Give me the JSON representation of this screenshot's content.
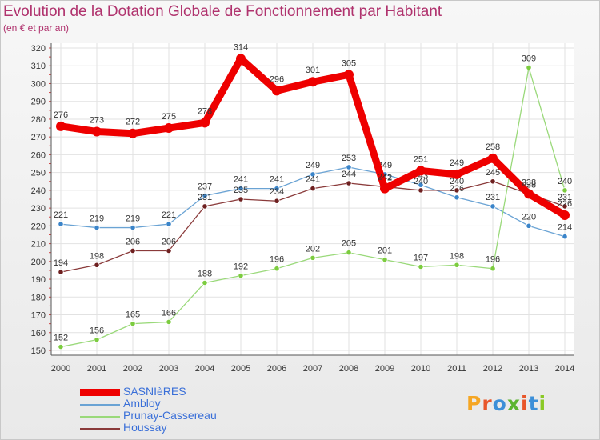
{
  "header": {
    "title": "Evolution de la Dotation Globale de Fonctionnement par Habitant",
    "subtitle": "(en € et par an)"
  },
  "logo": {
    "text": "Proxiti",
    "colors": [
      "#f5a623",
      "#e8562a",
      "#3c8fd8",
      "#5bb431",
      "#e8562a",
      "#3c8fd8",
      "#8ac926"
    ]
  },
  "chart_data": {
    "type": "line",
    "x": [
      "2000",
      "2001",
      "2002",
      "2003",
      "2004",
      "2005",
      "2006",
      "2007",
      "2008",
      "2009",
      "2010",
      "2011",
      "2012",
      "2013",
      "2014"
    ],
    "ylim": [
      150,
      320
    ],
    "yticks": [
      150,
      160,
      170,
      180,
      190,
      200,
      210,
      220,
      230,
      240,
      250,
      260,
      270,
      280,
      290,
      300,
      310,
      320
    ],
    "grid": true,
    "legend_position": "bottom-left",
    "series": [
      {
        "name": "Ambloy",
        "color": "#6aa3d4",
        "marker": "#3a84c9",
        "values": [
          221,
          219,
          219,
          221,
          237,
          241,
          241,
          249,
          253,
          249,
          243,
          236,
          231,
          220,
          214
        ],
        "labels": [
          "221",
          "219",
          "219",
          "221",
          "237",
          "241",
          "241",
          "249",
          "253",
          "249",
          "243",
          "236",
          "231",
          "220",
          "214"
        ]
      },
      {
        "name": "Prunay-Cassereau",
        "color": "#9ad97a",
        "marker": "#7ccc3f",
        "values": [
          152,
          156,
          165,
          166,
          188,
          192,
          196,
          202,
          205,
          201,
          197,
          198,
          196,
          309,
          240
        ],
        "labels": [
          "152",
          "156",
          "165",
          "166",
          "188",
          "192",
          "196",
          "202",
          "205",
          "201",
          "197",
          "198",
          "196",
          "309",
          "240"
        ]
      },
      {
        "name": "Houssay",
        "color": "#8a3a3a",
        "marker": "#6e2020",
        "values": [
          194,
          198,
          206,
          206,
          231,
          235,
          234,
          241,
          244,
          242,
          240,
          240,
          245,
          238,
          231
        ],
        "labels": [
          "194",
          "198",
          "206",
          "206",
          "231",
          "235",
          "234",
          "241",
          "244",
          "242",
          "240",
          "240",
          "245",
          "238",
          "231"
        ]
      },
      {
        "name": "SASNIèRES",
        "color": "#ee0000",
        "marker": "#ee0000",
        "values": [
          276,
          273,
          272,
          275,
          278,
          314,
          296,
          301,
          305,
          241,
          251,
          249,
          258,
          238,
          226
        ],
        "labels": [
          "276",
          "273",
          "272",
          "275",
          "278",
          "314",
          "296",
          "301",
          "305",
          "241",
          "251",
          "249",
          "258",
          "238",
          "226"
        ]
      }
    ],
    "legend": [
      "SASNIèRES",
      "Ambloy",
      "Prunay-Cassereau",
      "Houssay"
    ]
  }
}
